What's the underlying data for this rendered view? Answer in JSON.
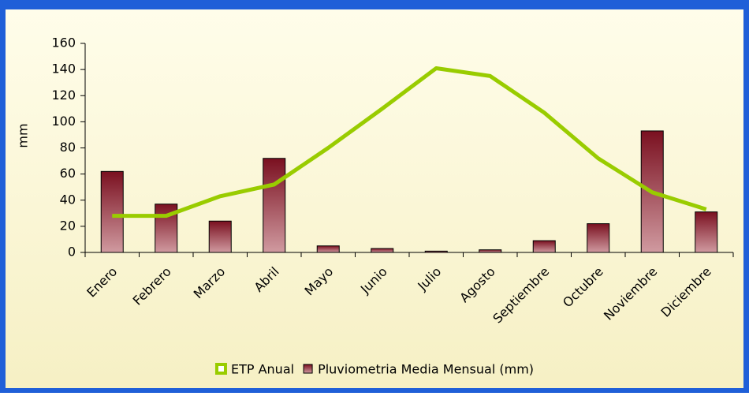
{
  "chart_data": {
    "type": "combo",
    "y_label": "mm",
    "categories": [
      "Enero",
      "Febrero",
      "Marzo",
      "Abril",
      "Mayo",
      "Junio",
      "Julio",
      "Agosto",
      "Septiembre",
      "Octubre",
      "Noviembre",
      "Diciembre"
    ],
    "series": [
      {
        "name": "ETP Anual",
        "type": "line",
        "color": "#99cc00",
        "values": [
          28,
          28,
          43,
          52,
          80,
          110,
          141,
          135,
          107,
          72,
          46,
          33
        ]
      },
      {
        "name": "Pluviometria Media Mensual (mm)",
        "type": "bar",
        "color": "#7a1020",
        "values": [
          62,
          37,
          24,
          72,
          5,
          3,
          1,
          2,
          9,
          22,
          93,
          31
        ]
      }
    ],
    "ylim": [
      0,
      160
    ],
    "yticks": [
      0,
      20,
      40,
      60,
      80,
      100,
      120,
      140,
      160
    ]
  }
}
